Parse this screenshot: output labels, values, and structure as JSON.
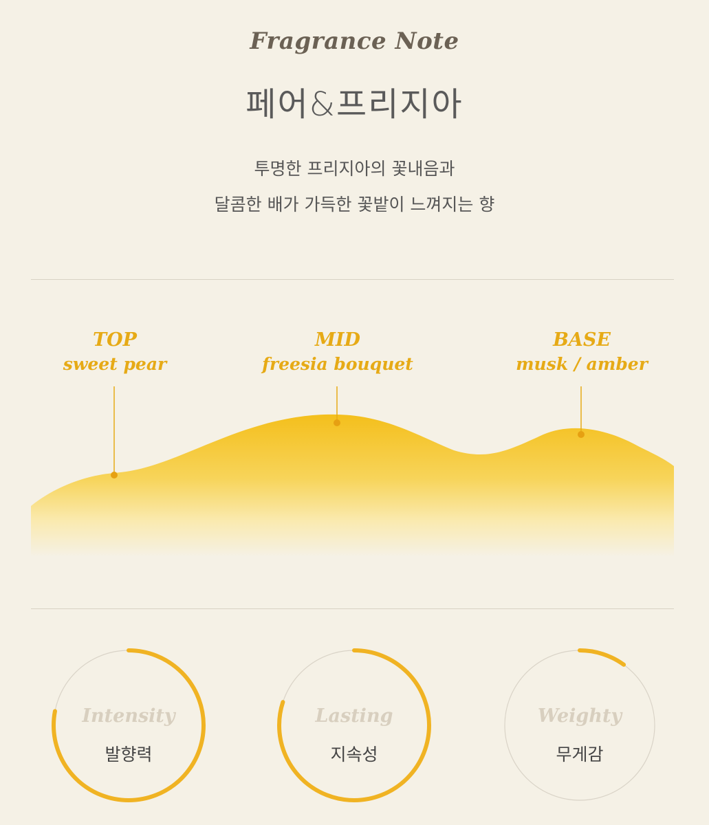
{
  "header": {
    "section_label": "Fragrance Note",
    "title": "페어&프리지아",
    "description_line1": "투명한 프리지아의 꽃내음과",
    "description_line2": "달콤한 배가 가득한 꽃밭이 느껴지는 향"
  },
  "notes": [
    {
      "stage": "TOP",
      "description": "sweet pear"
    },
    {
      "stage": "MID",
      "description": "freesia bouquet"
    },
    {
      "stage": "BASE",
      "description": "musk / amber"
    }
  ],
  "metrics": [
    {
      "label_en": "Intensity",
      "label_ko": "발향력",
      "level": 0.78
    },
    {
      "label_en": "Lasting",
      "label_ko": "지속성",
      "level": 0.8
    },
    {
      "label_en": "Weighty",
      "label_ko": "무게감",
      "level": 0.1
    }
  ],
  "colors": {
    "accent": "#f0b323",
    "accent_text": "#e6aa16",
    "track": "#d9d3c7",
    "background": "#f5f1e6"
  }
}
